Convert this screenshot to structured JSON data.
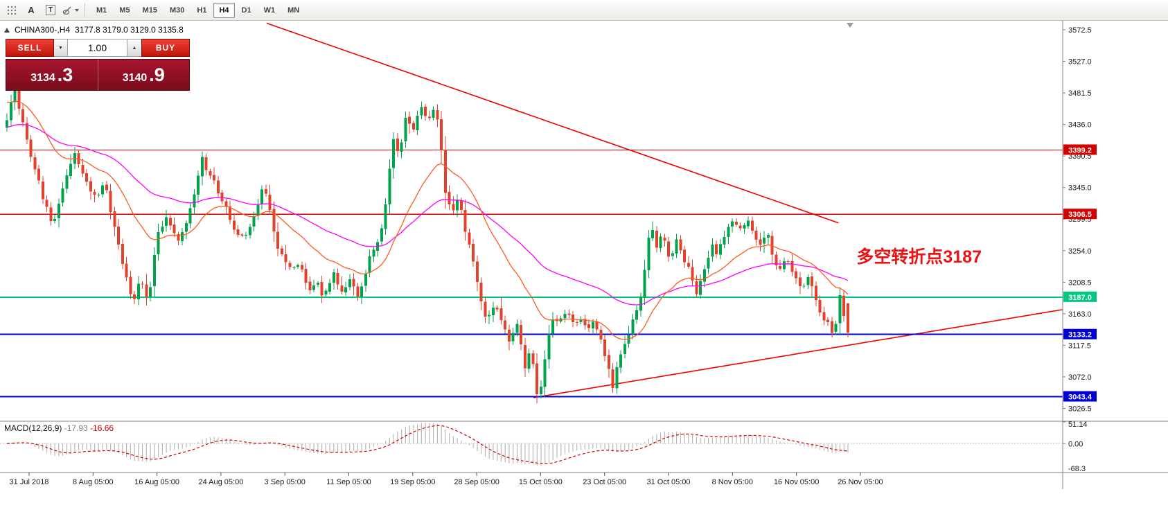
{
  "toolbar": {
    "label_icon": "A",
    "text_icon": "T",
    "timeframes": [
      "M1",
      "M5",
      "M15",
      "M30",
      "H1",
      "H4",
      "D1",
      "W1",
      "MN"
    ],
    "active_timeframe": "H4"
  },
  "chart_header": {
    "symbol": "CHINA300-,H4",
    "ohlc": "3177.8 3179.0 3129.0 3135.8"
  },
  "trade_panel": {
    "sell_label": "SELL",
    "buy_label": "BUY",
    "volume": "1.00",
    "decrease_glyph": "▼",
    "increase_glyph": "▲",
    "sell_price_int": "3134",
    "sell_price_frac": ".3",
    "buy_price_int": "3140",
    "buy_price_frac": ".9"
  },
  "colors": {
    "up": "#00A24C",
    "down": "#E2422C",
    "background": "#FFFFFF",
    "axis_text": "#1A1A1A"
  },
  "chart_data": {
    "type": "candlestick",
    "symbol": "CHINA300-",
    "timeframe": "H4",
    "ohlc_current": {
      "open": 3177.8,
      "high": 3179.0,
      "low": 3129.0,
      "close": 3135.8
    },
    "ylim": [
      3008,
      3585.5
    ],
    "y_ticks": [
      3572.5,
      3527.0,
      3481.5,
      3436.0,
      3390.5,
      3345.0,
      3299.5,
      3254.0,
      3208.5,
      3163.0,
      3117.5,
      3072.0,
      3026.5
    ],
    "x_labels": [
      "31 Jul 2018",
      "8 Aug 05:00",
      "16 Aug 05:00",
      "24 Aug 05:00",
      "3 Sep 05:00",
      "11 Sep 05:00",
      "19 Sep 05:00",
      "28 Sep 05:00",
      "15 Oct 05:00",
      "23 Oct 05:00",
      "31 Oct 05:00",
      "8 Nov 05:00",
      "16 Nov 05:00",
      "26 Nov 05:00"
    ],
    "bars_total": 212,
    "anchors": [
      [
        0.002,
        3445
      ],
      [
        0.008,
        3495
      ],
      [
        0.026,
        3400
      ],
      [
        0.043,
        3330
      ],
      [
        0.055,
        3290
      ],
      [
        0.068,
        3350
      ],
      [
        0.08,
        3395
      ],
      [
        0.092,
        3360
      ],
      [
        0.105,
        3330
      ],
      [
        0.117,
        3355
      ],
      [
        0.125,
        3300
      ],
      [
        0.138,
        3235
      ],
      [
        0.15,
        3180
      ],
      [
        0.158,
        3215
      ],
      [
        0.168,
        3180
      ],
      [
        0.179,
        3280
      ],
      [
        0.191,
        3300
      ],
      [
        0.203,
        3270
      ],
      [
        0.216,
        3300
      ],
      [
        0.232,
        3385
      ],
      [
        0.245,
        3355
      ],
      [
        0.255,
        3330
      ],
      [
        0.265,
        3300
      ],
      [
        0.278,
        3270
      ],
      [
        0.29,
        3290
      ],
      [
        0.305,
        3350
      ],
      [
        0.315,
        3300
      ],
      [
        0.323,
        3255
      ],
      [
        0.335,
        3225
      ],
      [
        0.348,
        3240
      ],
      [
        0.36,
        3195
      ],
      [
        0.368,
        3215
      ],
      [
        0.376,
        3185
      ],
      [
        0.389,
        3220
      ],
      [
        0.397,
        3190
      ],
      [
        0.409,
        3215
      ],
      [
        0.418,
        3185
      ],
      [
        0.43,
        3240
      ],
      [
        0.442,
        3265
      ],
      [
        0.45,
        3320
      ],
      [
        0.459,
        3420
      ],
      [
        0.467,
        3390
      ],
      [
        0.475,
        3450
      ],
      [
        0.483,
        3430
      ],
      [
        0.492,
        3465
      ],
      [
        0.5,
        3445
      ],
      [
        0.508,
        3460
      ],
      [
        0.514,
        3430
      ],
      [
        0.521,
        3340
      ],
      [
        0.529,
        3310
      ],
      [
        0.537,
        3330
      ],
      [
        0.544,
        3290
      ],
      [
        0.552,
        3255
      ],
      [
        0.562,
        3190
      ],
      [
        0.57,
        3150
      ],
      [
        0.58,
        3180
      ],
      [
        0.588,
        3150
      ],
      [
        0.599,
        3120
      ],
      [
        0.607,
        3150
      ],
      [
        0.615,
        3085
      ],
      [
        0.623,
        3110
      ],
      [
        0.632,
        3035
      ],
      [
        0.64,
        3100
      ],
      [
        0.648,
        3160
      ],
      [
        0.656,
        3145
      ],
      [
        0.665,
        3170
      ],
      [
        0.673,
        3150
      ],
      [
        0.681,
        3155
      ],
      [
        0.689,
        3140
      ],
      [
        0.698,
        3150
      ],
      [
        0.706,
        3130
      ],
      [
        0.714,
        3090
      ],
      [
        0.72,
        3055
      ],
      [
        0.727,
        3095
      ],
      [
        0.735,
        3120
      ],
      [
        0.743,
        3150
      ],
      [
        0.751,
        3170
      ],
      [
        0.759,
        3230
      ],
      [
        0.765,
        3300
      ],
      [
        0.772,
        3260
      ],
      [
        0.78,
        3280
      ],
      [
        0.788,
        3240
      ],
      [
        0.797,
        3270
      ],
      [
        0.805,
        3240
      ],
      [
        0.813,
        3220
      ],
      [
        0.821,
        3190
      ],
      [
        0.829,
        3230
      ],
      [
        0.838,
        3260
      ],
      [
        0.846,
        3250
      ],
      [
        0.854,
        3280
      ],
      [
        0.862,
        3300
      ],
      [
        0.871,
        3280
      ],
      [
        0.879,
        3300
      ],
      [
        0.887,
        3280
      ],
      [
        0.895,
        3260
      ],
      [
        0.904,
        3280
      ],
      [
        0.912,
        3240
      ],
      [
        0.92,
        3225
      ],
      [
        0.928,
        3245
      ],
      [
        0.936,
        3215
      ],
      [
        0.945,
        3195
      ],
      [
        0.953,
        3215
      ],
      [
        0.961,
        3185
      ],
      [
        0.969,
        3160
      ],
      [
        0.978,
        3145
      ],
      [
        0.984,
        3135
      ],
      [
        0.99,
        3192
      ],
      [
        1.0,
        3136
      ]
    ],
    "levels": [
      {
        "price": 3399.2,
        "label": "3399.2",
        "color": "#D40000",
        "width": 1.4
      },
      {
        "price": 3306.5,
        "label": "3306.5",
        "color": "#D40000",
        "width": 1.4
      },
      {
        "price": 3187.0,
        "label": "3187.0",
        "color": "#00C87C",
        "width": 2
      },
      {
        "price": 3133.2,
        "label": "3133.2",
        "color": "#0000D6",
        "width": 2
      },
      {
        "price": 3043.4,
        "label": "3043.4",
        "color": "#0000D6",
        "width": 2
      }
    ],
    "trendlines": [
      {
        "name": "descending-trendline",
        "x1": 0.251,
        "p1": 3582,
        "x2": 0.789,
        "p2": 3294,
        "color": "#EE0000",
        "width": 1.6
      },
      {
        "name": "ascending-trendline",
        "x1": 0.502,
        "p1": 3042,
        "x2": 1.0,
        "p2": 3169,
        "color": "#EE0000",
        "width": 1.6
      }
    ],
    "moving_averages": [
      {
        "name": "fast-ma",
        "color": "#FF5A1E",
        "period": 22,
        "seed": 3468
      },
      {
        "name": "slow-ma",
        "color": "#FF00FF",
        "period": 58,
        "seed": 3432
      }
    ],
    "annotation": {
      "text": "多空转折点3187",
      "color": "#EA1212",
      "x_frac": 0.806,
      "price": 3237
    },
    "indicator_macd": {
      "label": "MACD(12,26,9)",
      "value_main": "-17.93",
      "value_signal": "-16.66",
      "ticks": [
        "51.14",
        "0.00",
        "-68.3"
      ],
      "hist_color": "#B8B8B8",
      "signal_color": "#CC0000"
    }
  }
}
